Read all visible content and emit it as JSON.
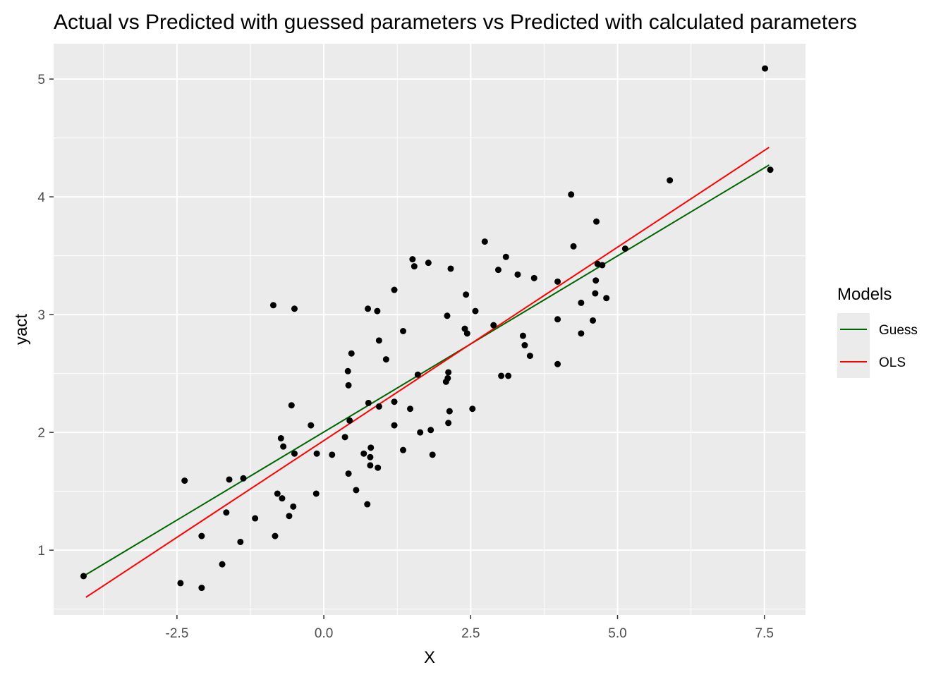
{
  "chart_data": {
    "type": "scatter",
    "title": "Actual vs Predicted with guessed parameters vs Predicted with calculated parameters",
    "xlabel": "X",
    "ylabel": "yact",
    "xlim": [
      -4.6,
      8.2
    ],
    "ylim": [
      0.45,
      5.3
    ],
    "x_ticks": [
      -2.5,
      0.0,
      2.5,
      5.0,
      7.5
    ],
    "x_tick_labels": [
      "-2.5",
      "0.0",
      "2.5",
      "5.0",
      "7.5"
    ],
    "y_ticks": [
      1,
      2,
      3,
      4,
      5
    ],
    "y_tick_labels": [
      "1",
      "2",
      "3",
      "4",
      "5"
    ],
    "grid": true,
    "legend": {
      "title": "Models",
      "placement": "right"
    },
    "points": [
      {
        "x": -4.09,
        "y": 0.78
      },
      {
        "x": -2.44,
        "y": 0.72
      },
      {
        "x": -2.37,
        "y": 1.59
      },
      {
        "x": -2.08,
        "y": 1.12
      },
      {
        "x": -2.08,
        "y": 0.68
      },
      {
        "x": -1.73,
        "y": 0.88
      },
      {
        "x": -1.66,
        "y": 1.32
      },
      {
        "x": -1.61,
        "y": 1.6
      },
      {
        "x": -1.42,
        "y": 1.07
      },
      {
        "x": -1.37,
        "y": 1.61
      },
      {
        "x": -1.17,
        "y": 1.27
      },
      {
        "x": -0.86,
        "y": 3.08
      },
      {
        "x": -0.83,
        "y": 1.12
      },
      {
        "x": -0.79,
        "y": 1.48
      },
      {
        "x": -0.73,
        "y": 1.95
      },
      {
        "x": -0.71,
        "y": 1.44
      },
      {
        "x": -0.69,
        "y": 1.88
      },
      {
        "x": -0.59,
        "y": 1.29
      },
      {
        "x": -0.55,
        "y": 2.23
      },
      {
        "x": -0.52,
        "y": 1.37
      },
      {
        "x": -0.5,
        "y": 1.82
      },
      {
        "x": -0.5,
        "y": 3.05
      },
      {
        "x": -0.22,
        "y": 2.06
      },
      {
        "x": -0.13,
        "y": 1.48
      },
      {
        "x": -0.12,
        "y": 1.82
      },
      {
        "x": 0.14,
        "y": 1.81
      },
      {
        "x": 0.36,
        "y": 1.96
      },
      {
        "x": 0.41,
        "y": 2.52
      },
      {
        "x": 0.42,
        "y": 1.65
      },
      {
        "x": 0.42,
        "y": 2.4
      },
      {
        "x": 0.44,
        "y": 2.1
      },
      {
        "x": 0.47,
        "y": 2.67
      },
      {
        "x": 0.55,
        "y": 1.51
      },
      {
        "x": 0.68,
        "y": 1.82
      },
      {
        "x": 0.74,
        "y": 1.39
      },
      {
        "x": 0.75,
        "y": 3.05
      },
      {
        "x": 0.76,
        "y": 2.25
      },
      {
        "x": 0.79,
        "y": 1.72
      },
      {
        "x": 0.79,
        "y": 1.79
      },
      {
        "x": 0.8,
        "y": 1.87
      },
      {
        "x": 0.91,
        "y": 3.03
      },
      {
        "x": 0.92,
        "y": 1.7
      },
      {
        "x": 0.94,
        "y": 2.22
      },
      {
        "x": 0.94,
        "y": 2.78
      },
      {
        "x": 1.06,
        "y": 2.62
      },
      {
        "x": 1.2,
        "y": 3.21
      },
      {
        "x": 1.2,
        "y": 2.06
      },
      {
        "x": 1.2,
        "y": 2.26
      },
      {
        "x": 1.35,
        "y": 1.85
      },
      {
        "x": 1.35,
        "y": 2.86
      },
      {
        "x": 1.47,
        "y": 2.2
      },
      {
        "x": 1.51,
        "y": 3.47
      },
      {
        "x": 1.54,
        "y": 3.41
      },
      {
        "x": 1.6,
        "y": 2.49
      },
      {
        "x": 1.64,
        "y": 2.0
      },
      {
        "x": 1.78,
        "y": 3.44
      },
      {
        "x": 1.82,
        "y": 2.02
      },
      {
        "x": 1.85,
        "y": 1.81
      },
      {
        "x": 2.08,
        "y": 2.43
      },
      {
        "x": 2.1,
        "y": 2.99
      },
      {
        "x": 2.11,
        "y": 2.46
      },
      {
        "x": 2.12,
        "y": 2.51
      },
      {
        "x": 2.12,
        "y": 2.08
      },
      {
        "x": 2.14,
        "y": 2.18
      },
      {
        "x": 2.16,
        "y": 3.39
      },
      {
        "x": 2.4,
        "y": 2.88
      },
      {
        "x": 2.42,
        "y": 3.17
      },
      {
        "x": 2.44,
        "y": 2.84
      },
      {
        "x": 2.53,
        "y": 2.2
      },
      {
        "x": 2.58,
        "y": 3.03
      },
      {
        "x": 2.74,
        "y": 3.62
      },
      {
        "x": 2.89,
        "y": 2.91
      },
      {
        "x": 2.97,
        "y": 3.38
      },
      {
        "x": 3.02,
        "y": 2.48
      },
      {
        "x": 3.1,
        "y": 3.49
      },
      {
        "x": 3.14,
        "y": 2.48
      },
      {
        "x": 3.3,
        "y": 3.34
      },
      {
        "x": 3.39,
        "y": 2.82
      },
      {
        "x": 3.42,
        "y": 2.74
      },
      {
        "x": 3.51,
        "y": 2.65
      },
      {
        "x": 3.58,
        "y": 3.31
      },
      {
        "x": 3.98,
        "y": 2.96
      },
      {
        "x": 3.98,
        "y": 3.28
      },
      {
        "x": 3.98,
        "y": 2.58
      },
      {
        "x": 4.21,
        "y": 4.02
      },
      {
        "x": 4.25,
        "y": 3.58
      },
      {
        "x": 4.38,
        "y": 3.1
      },
      {
        "x": 4.38,
        "y": 2.84
      },
      {
        "x": 4.58,
        "y": 2.95
      },
      {
        "x": 4.62,
        "y": 3.18
      },
      {
        "x": 4.63,
        "y": 3.29
      },
      {
        "x": 4.64,
        "y": 3.79
      },
      {
        "x": 4.66,
        "y": 3.43
      },
      {
        "x": 4.74,
        "y": 3.42
      },
      {
        "x": 4.81,
        "y": 3.14
      },
      {
        "x": 5.13,
        "y": 3.56
      },
      {
        "x": 5.89,
        "y": 4.14
      },
      {
        "x": 7.51,
        "y": 5.09
      },
      {
        "x": 7.6,
        "y": 4.23
      }
    ],
    "series": [
      {
        "name": "Guess",
        "type": "line",
        "color": "#006400",
        "x": [
          -4.09,
          7.58
        ],
        "y": [
          0.78,
          4.27
        ]
      },
      {
        "name": "OLS",
        "type": "line",
        "color": "#ff0000",
        "x": [
          -4.05,
          7.58
        ],
        "y": [
          0.6,
          4.42
        ]
      }
    ]
  },
  "colors": {
    "panel_background": "#ebebeb",
    "grid_line": "#ffffff",
    "point": "#000000"
  }
}
